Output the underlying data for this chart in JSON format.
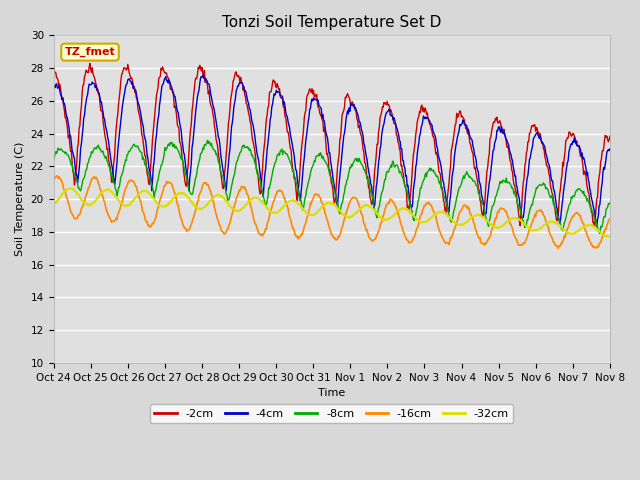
{
  "title": "Tonzi Soil Temperature Set D",
  "xlabel": "Time",
  "ylabel": "Soil Temperature (C)",
  "ylim": [
    10,
    30
  ],
  "yticks": [
    10,
    12,
    14,
    16,
    18,
    20,
    22,
    24,
    26,
    28,
    30
  ],
  "background_color": "#d8d8d8",
  "plot_bg_color": "#e0e0e0",
  "annotation_text": "TZ_fmet",
  "annotation_facecolor": "#ffffcc",
  "annotation_edgecolor": "#ccaa00",
  "annotation_textcolor": "#cc0000",
  "series": [
    {
      "label": "-2cm",
      "color": "#cc0000",
      "linewidth": 1.0
    },
    {
      "label": "-4cm",
      "color": "#0000cc",
      "linewidth": 1.0
    },
    {
      "label": "-8cm",
      "color": "#00aa00",
      "linewidth": 1.0
    },
    {
      "label": "-16cm",
      "color": "#ff8800",
      "linewidth": 1.2
    },
    {
      "label": "-32cm",
      "color": "#dddd00",
      "linewidth": 1.5
    }
  ],
  "xtick_labels": [
    "Oct 24",
    "Oct 25",
    "Oct 26",
    "Oct 27",
    "Oct 28",
    "Oct 29",
    "Oct 30",
    "Oct 31",
    "Nov 1",
    "Nov 2",
    "Nov 3",
    "Nov 4",
    "Nov 5",
    "Nov 6",
    "Nov 7",
    "Nov 8"
  ],
  "n_days": 15,
  "pts_per_day": 48
}
